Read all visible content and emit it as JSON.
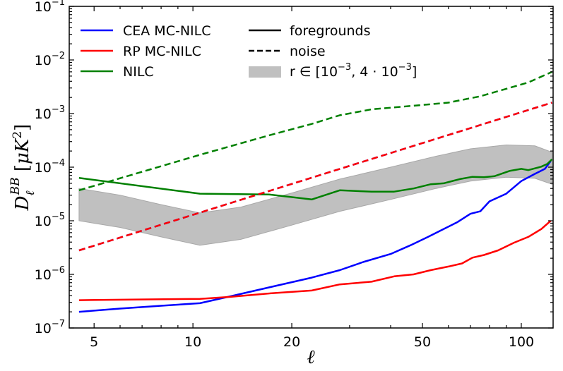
{
  "chart_data": {
    "type": "line",
    "xscale": "log",
    "yscale": "log",
    "xlim": [
      4.2,
      125
    ],
    "ylim": [
      1e-07,
      0.1
    ],
    "xlabel": "ℓ",
    "ylabel": {
      "base": "D",
      "sub": "ℓ",
      "sup": "BB",
      "unit_open": " [",
      "unit": "μK",
      "unit_sup": "2",
      "unit_close": "]"
    },
    "x_ticks": [
      {
        "value": 5,
        "label": "5"
      },
      {
        "value": 10,
        "label": "10"
      },
      {
        "value": 20,
        "label": "20"
      },
      {
        "value": 50,
        "label": "50"
      },
      {
        "value": 100,
        "label": "100"
      }
    ],
    "y_ticks": [
      {
        "exp": -7,
        "base": "10",
        "sup": "−7"
      },
      {
        "exp": -6,
        "base": "10",
        "sup": "−6"
      },
      {
        "exp": -5,
        "base": "10",
        "sup": "−5"
      },
      {
        "exp": -4,
        "base": "10",
        "sup": "−4"
      },
      {
        "exp": -3,
        "base": "10",
        "sup": "−3"
      },
      {
        "exp": -2,
        "base": "10",
        "sup": "−2"
      },
      {
        "exp": -1,
        "base": "10",
        "sup": "−1"
      }
    ],
    "colors": {
      "cea": "#0000ff",
      "rp": "#ff0000",
      "nilc": "#008000",
      "band": "#c0c0c0",
      "axis": "#000000"
    },
    "series": [
      {
        "name": "CEA MC-NILC foregrounds",
        "color_key": "cea",
        "style": "solid",
        "x": [
          4.5,
          6,
          8,
          10.5,
          13,
          17,
          23,
          28,
          33,
          40,
          46,
          52,
          58,
          64,
          70,
          75,
          80,
          90,
          100,
          110,
          118,
          123
        ],
        "y": [
          2e-07,
          2.3e-07,
          2.6e-07,
          2.9e-07,
          3.9e-07,
          5.7e-07,
          8.7e-07,
          1.2e-06,
          1.7e-06,
          2.4e-06,
          3.5e-06,
          5e-06,
          7e-06,
          9.5e-06,
          1.35e-05,
          1.5e-05,
          2.3e-05,
          3.2e-05,
          5.5e-05,
          7.5e-05,
          9.3e-05,
          0.00013
        ]
      },
      {
        "name": "RP MC-NILC foregrounds",
        "color_key": "rp",
        "style": "solid",
        "x": [
          4.5,
          10.5,
          13,
          17,
          23,
          28,
          35,
          41,
          47,
          53,
          60,
          66,
          71,
          77,
          85,
          95,
          105,
          115,
          123
        ],
        "y": [
          3.3e-07,
          3.5e-07,
          3.8e-07,
          4.4e-07,
          5e-07,
          6.5e-07,
          7.3e-07,
          9.2e-07,
          1e-06,
          1.2e-06,
          1.4e-06,
          1.6e-06,
          2.05e-06,
          2.3e-06,
          2.8e-06,
          3.9e-06,
          5e-06,
          7e-06,
          1e-05
        ]
      },
      {
        "name": "NILC foregrounds",
        "color_key": "nilc",
        "style": "solid",
        "x": [
          4.5,
          10.5,
          17,
          23,
          28,
          35,
          41,
          47,
          53,
          58,
          65,
          71,
          77,
          83,
          92,
          100,
          105,
          110,
          115,
          120,
          124
        ],
        "y": [
          6.3e-05,
          3.2e-05,
          3.1e-05,
          2.5e-05,
          3.7e-05,
          3.5e-05,
          3.5e-05,
          4e-05,
          4.8e-05,
          5e-05,
          6e-05,
          6.6e-05,
          6.5e-05,
          6.8e-05,
          8.5e-05,
          9.3e-05,
          8.8e-05,
          9.5e-05,
          0.000102,
          0.000115,
          0.00014
        ]
      },
      {
        "name": "CEA MC-NILC noise",
        "color_key": "cea",
        "style": "dashed",
        "x": [
          4.5,
          124
        ],
        "y": [
          2.8e-06,
          0.0016
        ]
      },
      {
        "name": "RP MC-NILC noise",
        "color_key": "rp",
        "style": "dashed",
        "x": [
          4.5,
          124
        ],
        "y": [
          2.8e-06,
          0.0016
        ]
      },
      {
        "name": "NILC noise",
        "color_key": "nilc",
        "style": "dashed",
        "x": [
          4.5,
          10.5,
          17,
          23,
          28,
          35,
          47,
          60,
          75,
          90,
          105,
          124
        ],
        "y": [
          3.7e-05,
          0.00017,
          0.00039,
          0.00064,
          0.00093,
          0.0012,
          0.0014,
          0.0016,
          0.0021,
          0.0029,
          0.0038,
          0.006
        ]
      }
    ],
    "band": {
      "name": "r ∈ [10^-3, 4·10^-3]",
      "color_key": "band",
      "x": [
        4.5,
        6,
        8,
        10.5,
        14,
        20,
        28,
        40,
        55,
        70,
        90,
        110,
        124
      ],
      "upper": [
        4e-05,
        3e-05,
        2e-05,
        1.4e-05,
        1.8e-05,
        3.3e-05,
        6e-05,
        0.0001,
        0.00016,
        0.00022,
        0.00026,
        0.00025,
        0.00019
      ],
      "lower": [
        1e-05,
        7.5e-06,
        5e-06,
        3.5e-06,
        4.5e-06,
        8.3e-06,
        1.5e-05,
        2.5e-05,
        4e-05,
        5.5e-05,
        6.5e-05,
        6.2e-05,
        4.8e-05
      ]
    },
    "legend": {
      "placement": "top-left",
      "col1": [
        {
          "label": "CEA MC-NILC",
          "color_key": "cea"
        },
        {
          "label": "RP MC-NILC",
          "color_key": "rp"
        },
        {
          "label": "NILC",
          "color_key": "nilc"
        }
      ],
      "col2": [
        {
          "label": "foregrounds",
          "style": "solid"
        },
        {
          "label": "noise",
          "style": "dashed"
        }
      ],
      "band_label": {
        "prefix": "r ∈ [10",
        "sup1": "−3",
        "mid": ", 4 · 10",
        "sup2": "−3",
        "suffix": "]"
      }
    }
  }
}
